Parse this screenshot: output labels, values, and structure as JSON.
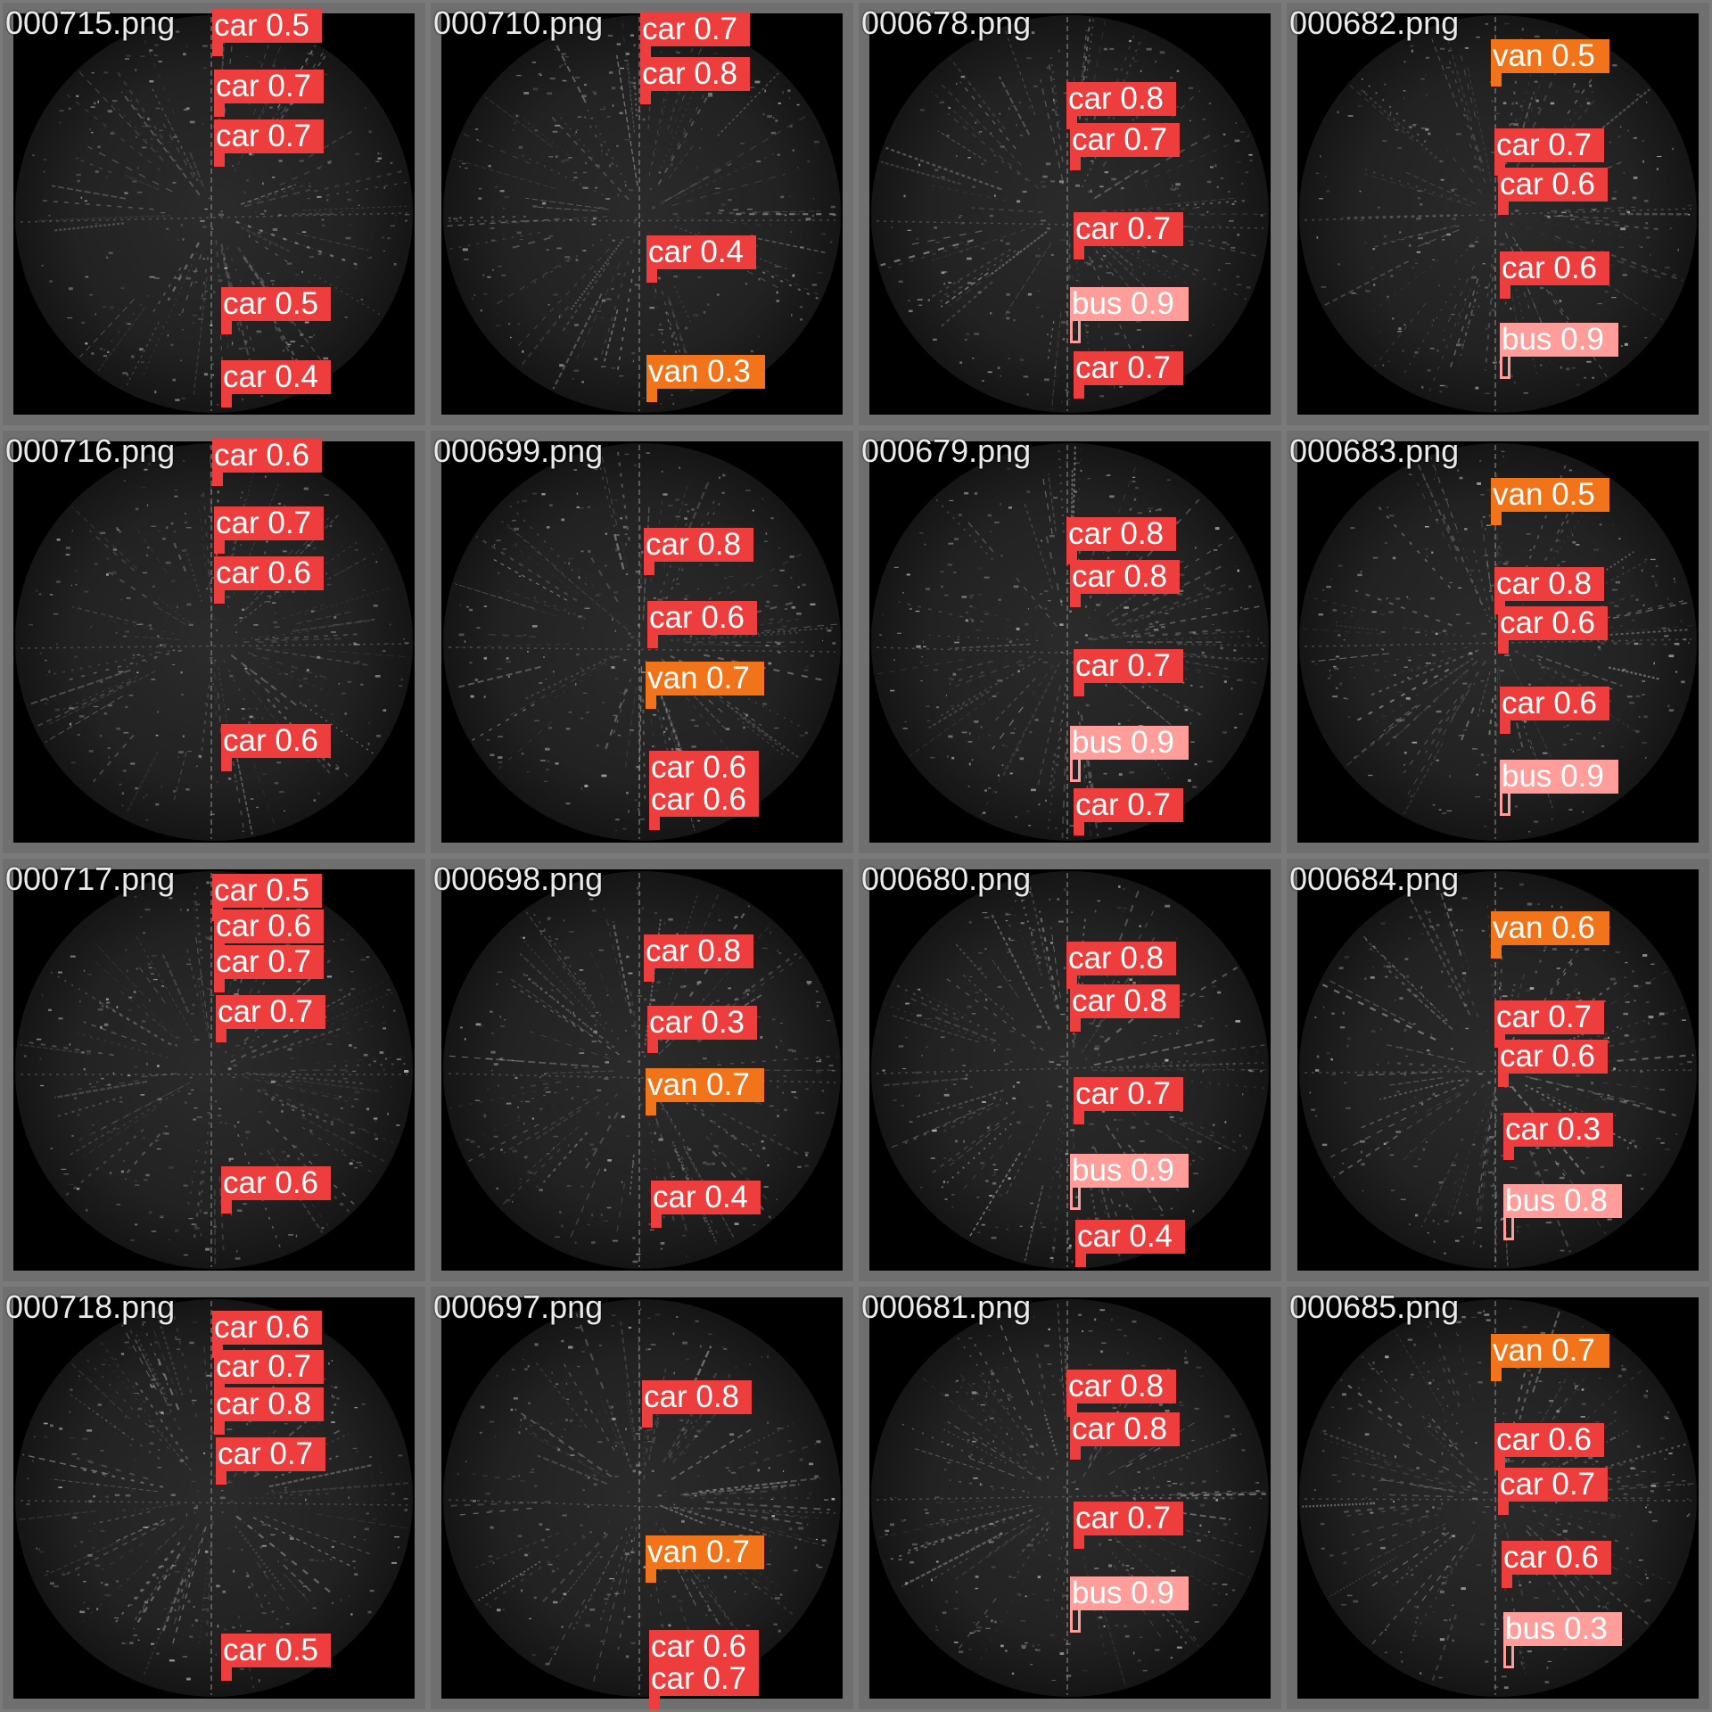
{
  "colors": {
    "car": "#ee3d3d",
    "van": "#f2741a",
    "bus": "#ff9d9a"
  },
  "tiles": [
    {
      "file": "000715.png",
      "dets": [
        {
          "cls": "car",
          "conf": "0.5"
        },
        {
          "cls": "car",
          "conf": "0.7"
        },
        {
          "cls": "car",
          "conf": "0.7"
        },
        {
          "cls": "car",
          "conf": "0.5"
        },
        {
          "cls": "car",
          "conf": "0.4"
        }
      ]
    },
    {
      "file": "000710.png",
      "dets": [
        {
          "cls": "car",
          "conf": "0.7"
        },
        {
          "cls": "car",
          "conf": "0.8"
        },
        {
          "cls": "car",
          "conf": "0.4"
        },
        {
          "cls": "van",
          "conf": "0.3"
        }
      ]
    },
    {
      "file": "000678.png",
      "dets": [
        {
          "cls": "car",
          "conf": "0.8"
        },
        {
          "cls": "car",
          "conf": "0.7"
        },
        {
          "cls": "car",
          "conf": "0.7"
        },
        {
          "cls": "bus",
          "conf": "0.9"
        },
        {
          "cls": "car",
          "conf": "0.7"
        }
      ]
    },
    {
      "file": "000682.png",
      "dets": [
        {
          "cls": "van",
          "conf": "0.5"
        },
        {
          "cls": "car",
          "conf": "0.7"
        },
        {
          "cls": "car",
          "conf": "0.6"
        },
        {
          "cls": "car",
          "conf": "0.6"
        },
        {
          "cls": "bus",
          "conf": "0.9"
        }
      ]
    },
    {
      "file": "000716.png",
      "dets": [
        {
          "cls": "car",
          "conf": "0.6"
        },
        {
          "cls": "car",
          "conf": "0.7"
        },
        {
          "cls": "car",
          "conf": "0.6"
        },
        {
          "cls": "car",
          "conf": "0.6"
        }
      ]
    },
    {
      "file": "000699.png",
      "dets": [
        {
          "cls": "car",
          "conf": "0.8"
        },
        {
          "cls": "car",
          "conf": "0.6"
        },
        {
          "cls": "van",
          "conf": "0.7"
        },
        {
          "cls": "car",
          "conf": "0.6"
        },
        {
          "cls": "car",
          "conf": "0.6"
        }
      ]
    },
    {
      "file": "000679.png",
      "dets": [
        {
          "cls": "car",
          "conf": "0.8"
        },
        {
          "cls": "car",
          "conf": "0.8"
        },
        {
          "cls": "car",
          "conf": "0.7"
        },
        {
          "cls": "bus",
          "conf": "0.9"
        },
        {
          "cls": "car",
          "conf": "0.7"
        }
      ]
    },
    {
      "file": "000683.png",
      "dets": [
        {
          "cls": "van",
          "conf": "0.5"
        },
        {
          "cls": "car",
          "conf": "0.8"
        },
        {
          "cls": "car",
          "conf": "0.6"
        },
        {
          "cls": "car",
          "conf": "0.6"
        },
        {
          "cls": "bus",
          "conf": "0.9"
        }
      ]
    },
    {
      "file": "000717.png",
      "dets": [
        {
          "cls": "car",
          "conf": "0.5"
        },
        {
          "cls": "car",
          "conf": "0.6"
        },
        {
          "cls": "car",
          "conf": "0.7"
        },
        {
          "cls": "car",
          "conf": "0.7"
        },
        {
          "cls": "car",
          "conf": "0.6"
        }
      ]
    },
    {
      "file": "000698.png",
      "dets": [
        {
          "cls": "car",
          "conf": "0.8"
        },
        {
          "cls": "car",
          "conf": "0.3"
        },
        {
          "cls": "van",
          "conf": "0.7"
        },
        {
          "cls": "car",
          "conf": "0.4"
        }
      ]
    },
    {
      "file": "000680.png",
      "dets": [
        {
          "cls": "car",
          "conf": "0.8"
        },
        {
          "cls": "car",
          "conf": "0.8"
        },
        {
          "cls": "car",
          "conf": "0.7"
        },
        {
          "cls": "bus",
          "conf": "0.9"
        },
        {
          "cls": "car",
          "conf": "0.4"
        }
      ]
    },
    {
      "file": "000684.png",
      "dets": [
        {
          "cls": "van",
          "conf": "0.6"
        },
        {
          "cls": "car",
          "conf": "0.7"
        },
        {
          "cls": "car",
          "conf": "0.6"
        },
        {
          "cls": "car",
          "conf": "0.3"
        },
        {
          "cls": "bus",
          "conf": "0.8"
        }
      ]
    },
    {
      "file": "000718.png",
      "dets": [
        {
          "cls": "car",
          "conf": "0.6"
        },
        {
          "cls": "car",
          "conf": "0.7"
        },
        {
          "cls": "car",
          "conf": "0.8"
        },
        {
          "cls": "car",
          "conf": "0.7"
        },
        {
          "cls": "car",
          "conf": "0.5"
        }
      ]
    },
    {
      "file": "000697.png",
      "dets": [
        {
          "cls": "car",
          "conf": "0.8"
        },
        {
          "cls": "van",
          "conf": "0.7"
        },
        {
          "cls": "car",
          "conf": "0.6"
        },
        {
          "cls": "car",
          "conf": "0.7"
        }
      ]
    },
    {
      "file": "000681.png",
      "dets": [
        {
          "cls": "car",
          "conf": "0.8"
        },
        {
          "cls": "car",
          "conf": "0.8"
        },
        {
          "cls": "car",
          "conf": "0.7"
        },
        {
          "cls": "bus",
          "conf": "0.9"
        }
      ]
    },
    {
      "file": "000685.png",
      "dets": [
        {
          "cls": "van",
          "conf": "0.7"
        },
        {
          "cls": "car",
          "conf": "0.6"
        },
        {
          "cls": "car",
          "conf": "0.7"
        },
        {
          "cls": "car",
          "conf": "0.6"
        },
        {
          "cls": "bus",
          "conf": "0.3"
        }
      ]
    }
  ]
}
